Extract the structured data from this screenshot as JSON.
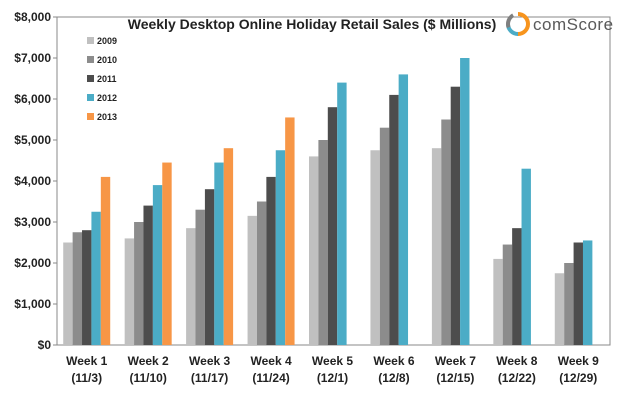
{
  "brand": {
    "name": "comScore",
    "logo_icon": "comscore-logo-icon",
    "colors": {
      "orange": "#f7941d",
      "blue": "#4bacc6",
      "gray": "#7f7f7f"
    }
  },
  "chart_data": {
    "type": "bar",
    "title": "Weekly Desktop Online Holiday Retail Sales ($ Millions)",
    "xlabel": "",
    "ylabel": "",
    "ylim": [
      0,
      8000
    ],
    "y_ticks": [
      "$0",
      "$1,000",
      "$2,000",
      "$3,000",
      "$4,000",
      "$5,000",
      "$6,000",
      "$7,000",
      "$8,000"
    ],
    "y_tick_values": [
      0,
      1000,
      2000,
      3000,
      4000,
      5000,
      6000,
      7000,
      8000
    ],
    "grid": false,
    "legend_position": "top-left",
    "categories": [
      [
        "Week 1",
        "(11/3)"
      ],
      [
        "Week 2",
        "(11/10)"
      ],
      [
        "Week 3",
        "(11/17)"
      ],
      [
        "Week 4",
        "(11/24)"
      ],
      [
        "Week 5",
        "(12/1)"
      ],
      [
        "Week 6",
        "(12/8)"
      ],
      [
        "Week 7",
        "(12/15)"
      ],
      [
        "Week 8",
        "(12/22)"
      ],
      [
        "Week 9",
        "(12/29)"
      ]
    ],
    "series": [
      {
        "name": "2009",
        "color": "#c0c0c0",
        "values": [
          2500,
          2600,
          2850,
          3150,
          4600,
          4750,
          4800,
          2100,
          1750
        ]
      },
      {
        "name": "2010",
        "color": "#8c8c8c",
        "values": [
          2750,
          3000,
          3300,
          3500,
          5000,
          5300,
          5500,
          2450,
          2000
        ]
      },
      {
        "name": "2011",
        "color": "#4d4d4d",
        "values": [
          2800,
          3400,
          3800,
          4100,
          5800,
          6100,
          6300,
          2850,
          2500
        ]
      },
      {
        "name": "2012",
        "color": "#4bacc6",
        "values": [
          3250,
          3900,
          4450,
          4750,
          6400,
          6600,
          7000,
          4300,
          2550
        ]
      },
      {
        "name": "2013",
        "color": "#f79646",
        "values": [
          4100,
          4450,
          4800,
          5550,
          null,
          null,
          null,
          null,
          null
        ]
      }
    ]
  }
}
